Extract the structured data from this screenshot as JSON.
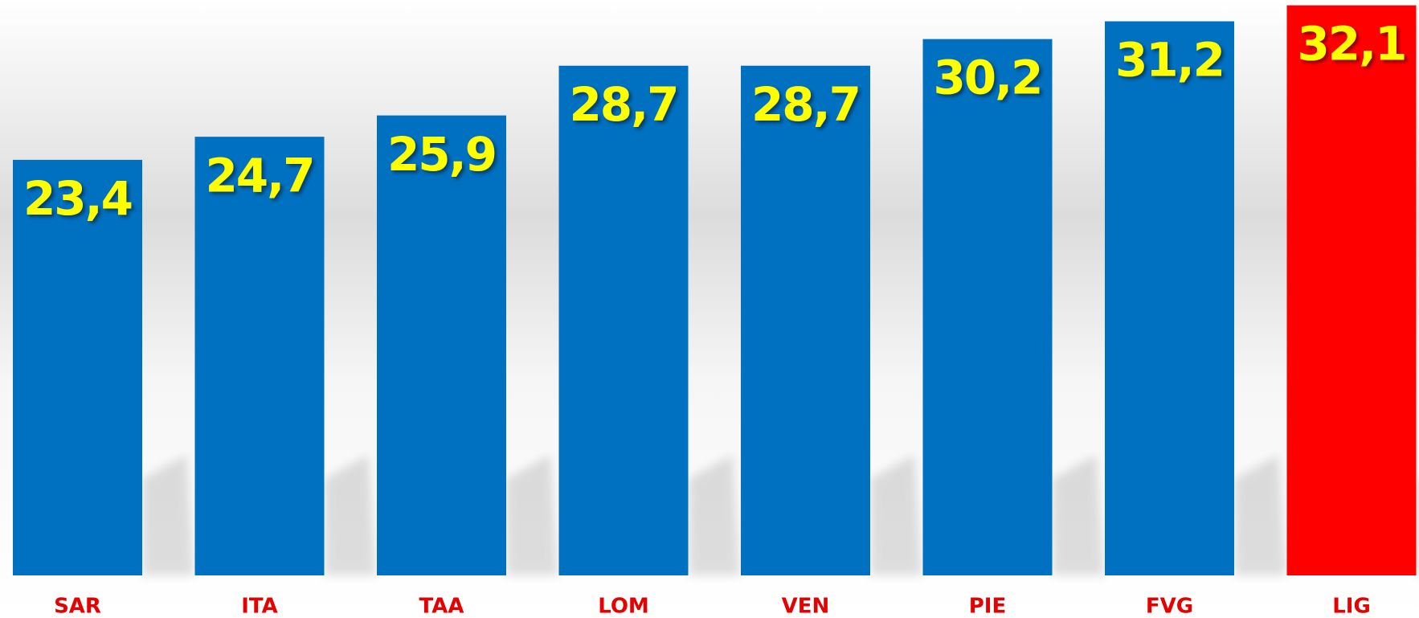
{
  "chart_data": {
    "type": "bar",
    "categories": [
      "SAR",
      "ITA",
      "TAA",
      "LOM",
      "VEN",
      "PIE",
      "FVG",
      "LIG"
    ],
    "values": [
      23.4,
      24.7,
      25.9,
      28.7,
      28.7,
      30.2,
      31.2,
      32.1
    ],
    "value_labels": [
      "23,4",
      "24,7",
      "25,9",
      "28,7",
      "28,7",
      "30,2",
      "31,2",
      "32,1"
    ],
    "colors": [
      "#0070c0",
      "#0070c0",
      "#0070c0",
      "#0070c0",
      "#0070c0",
      "#0070c0",
      "#0070c0",
      "#ff0000"
    ],
    "ylim": [
      0,
      32.4
    ]
  }
}
